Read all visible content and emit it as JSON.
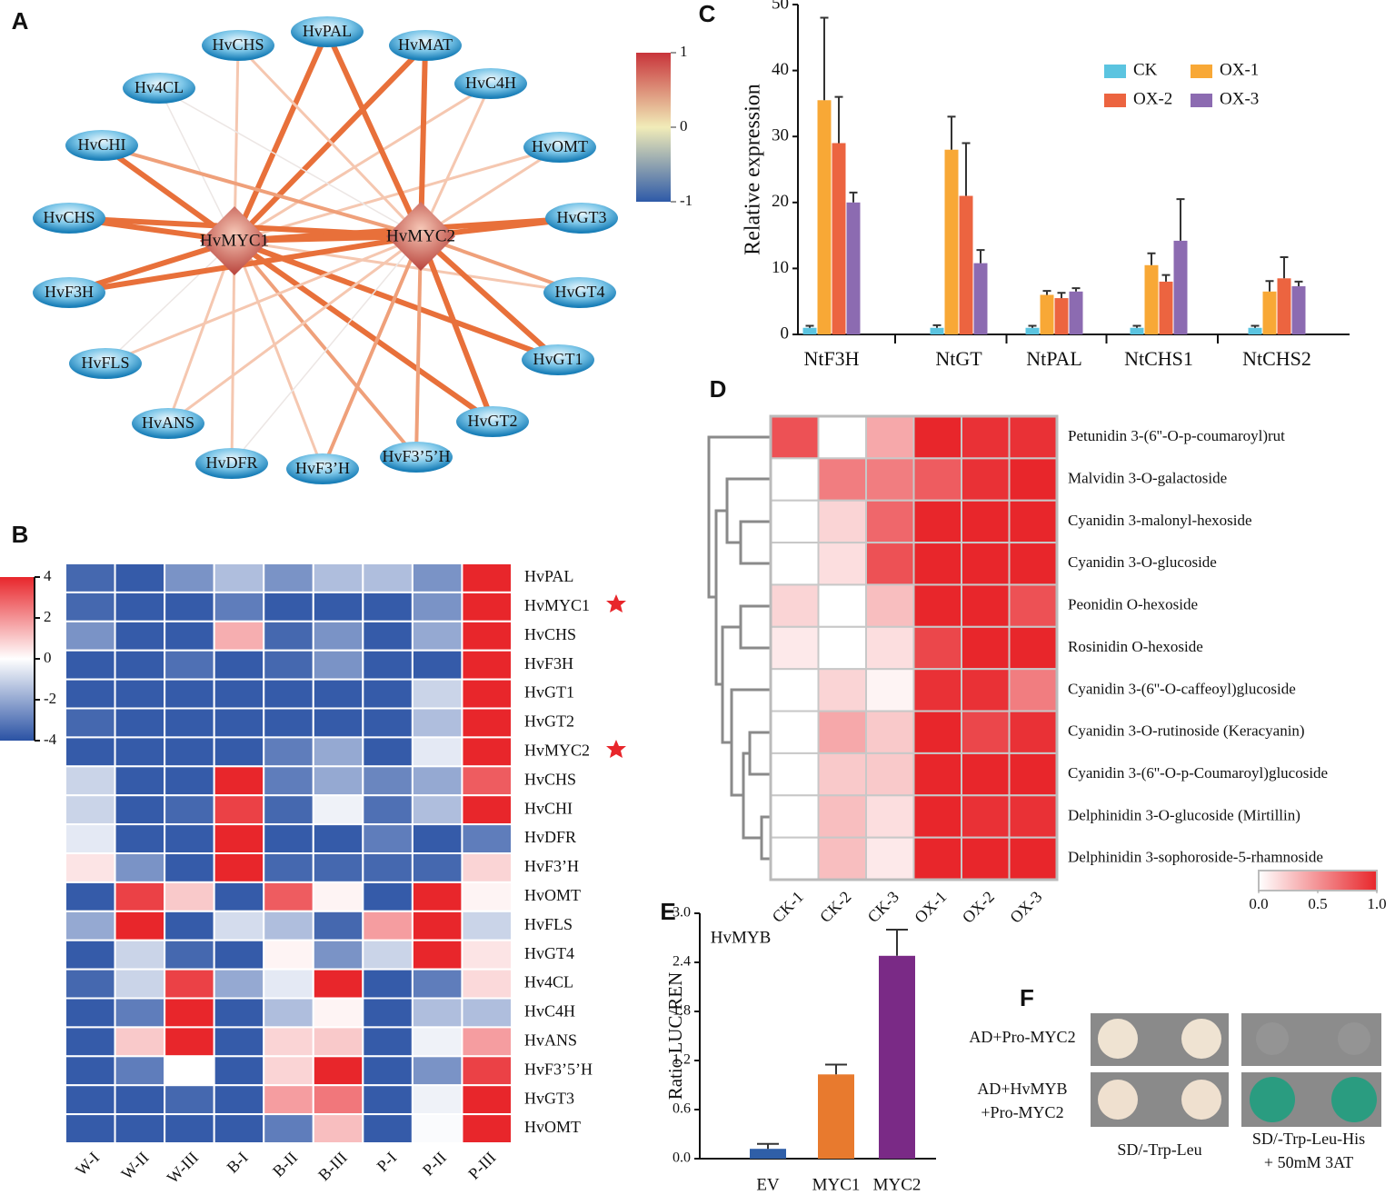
{
  "panel_labels": [
    "A",
    "B",
    "C",
    "D",
    "E",
    "F"
  ],
  "network": {
    "hubs": [
      "HvMYC1",
      "HvMYC2"
    ],
    "nodes": [
      "HvCHS",
      "HvPAL",
      "HvMAT",
      "HvC4H",
      "Hv4CL",
      "HvOMT",
      "HvCHI",
      "HvCHS",
      "HvGT3",
      "HvF3H",
      "HvGT4",
      "HvFLS",
      "HvGT1",
      "HvANS",
      "HvGT2",
      "HvDFR",
      "HvF3’H",
      "HvF3’5’H"
    ],
    "colorbar_ticks": [
      1,
      0,
      -1
    ]
  },
  "chart_data": [
    {
      "type": "heatmap",
      "rows": [
        "HvPAL",
        "HvMYC1",
        "HvCHS",
        "HvF3H",
        "HvGT1",
        "HvGT2",
        "HvMYC2",
        "HvCHS",
        "HvCHI",
        "HvDFR",
        "HvF3’H",
        "HvOMT",
        "HvFLS",
        "HvGT4",
        "Hv4CL",
        "HvC4H",
        "HvANS",
        "HvF3’5’H",
        "HvGT3",
        "HvOMT"
      ],
      "columns": [
        "W-I",
        "W-II",
        "W-III",
        "B-I",
        "B-II",
        "B-III",
        "P-I",
        "P-II",
        "P-III"
      ],
      "values": [
        [
          -3.5,
          -3.8,
          -2.5,
          -1.5,
          -2.5,
          -1.5,
          -1.5,
          -2.5,
          4
        ],
        [
          -3.5,
          -3.8,
          -3.8,
          -3,
          -3.8,
          -3.8,
          -3.8,
          -2.5,
          4
        ],
        [
          -2.5,
          -3.8,
          -3.8,
          1.5,
          -3.5,
          -2.5,
          -3.8,
          -2,
          4
        ],
        [
          -3.8,
          -3.8,
          -3.3,
          -3.8,
          -3.5,
          -2.5,
          -3.8,
          -3.8,
          4
        ],
        [
          -3.8,
          -3.8,
          -3.8,
          -3.8,
          -3.8,
          -3.8,
          -3.8,
          -1,
          4
        ],
        [
          -3.5,
          -3.8,
          -3.8,
          -3.8,
          -3.8,
          -3.8,
          -3.8,
          -1.5,
          4
        ],
        [
          -3.8,
          -3.8,
          -3.8,
          -3.8,
          -3,
          -2,
          -3.8,
          -0.5,
          4
        ],
        [
          -1,
          -3.8,
          -3.8,
          4,
          -3,
          -2,
          -2.8,
          -2,
          3
        ],
        [
          -1,
          -3.8,
          -3.5,
          3.5,
          -3.5,
          -0.3,
          -3.3,
          -1.5,
          4
        ],
        [
          -0.5,
          -3.8,
          -3.8,
          4,
          -3.8,
          -3.8,
          -3,
          -3.8,
          -3
        ],
        [
          0.5,
          -2.5,
          -3.8,
          4,
          -3.5,
          -3.5,
          -3.5,
          -3.5,
          0.8
        ],
        [
          -3.8,
          3.5,
          1,
          -3.8,
          3,
          0.2,
          -3.8,
          4,
          0.2
        ],
        [
          -2,
          4,
          -3.8,
          -0.8,
          -1.5,
          -3.5,
          1.8,
          4,
          -1
        ],
        [
          -3.8,
          -1,
          -3.5,
          -3.8,
          0.2,
          -2.5,
          -1,
          4,
          0.5
        ],
        [
          -3.5,
          -1,
          3.5,
          -2,
          -0.5,
          4,
          -3.8,
          -3,
          0.7
        ],
        [
          -3.8,
          -3,
          4,
          -3.8,
          -1.5,
          0.2,
          -3.8,
          -1.5,
          -1.5
        ],
        [
          -3.8,
          1,
          4,
          -3.8,
          0.8,
          1,
          -3.8,
          -0.3,
          1.8
        ],
        [
          -3.8,
          -3,
          0,
          -3.8,
          0.8,
          4,
          -3.8,
          -2.5,
          3.5
        ],
        [
          -3.8,
          -3.8,
          -3.5,
          -3.8,
          1.8,
          2.5,
          -3.8,
          -0.3,
          4
        ],
        [
          -3.8,
          -3.8,
          -3.8,
          -3.8,
          -3,
          1.2,
          -3.8,
          -0.1,
          4
        ]
      ],
      "vlim": [
        -4,
        4
      ],
      "colors": [
        "#2a52a4",
        "#ffffff",
        "#e8262b"
      ],
      "colorbar_ticks": [
        4,
        2,
        0,
        -2,
        -4
      ]
    },
    {
      "type": "bar",
      "ylabel": "Relative expression",
      "categories": [
        "NtF3H",
        "NtGT",
        "NtPAL",
        "NtCHS1",
        "NtCHS2"
      ],
      "series": [
        {
          "name": "CK",
          "color": "#5bc4e0",
          "values": [
            1,
            1,
            1,
            1,
            1
          ],
          "errors": [
            0.3,
            0.4,
            0.3,
            0.3,
            0.3
          ]
        },
        {
          "name": "OX-1",
          "color": "#f8a836",
          "values": [
            35.5,
            28,
            6,
            10.5,
            6.5
          ],
          "errors": [
            12.5,
            5,
            0.6,
            1.8,
            1.6
          ]
        },
        {
          "name": "OX-2",
          "color": "#ec6440",
          "values": [
            29,
            21,
            5.5,
            8,
            8.5
          ],
          "errors": [
            7,
            8,
            0.8,
            1,
            3.2
          ]
        },
        {
          "name": "OX-3",
          "color": "#8c6bb1",
          "values": [
            20,
            10.8,
            6.5,
            14.2,
            7.3
          ],
          "errors": [
            1.5,
            2,
            0.5,
            6.3,
            0.7
          ]
        }
      ],
      "ylim": [
        0,
        50
      ],
      "yticks": [
        0,
        10,
        20,
        30,
        40,
        50
      ]
    },
    {
      "type": "heatmap",
      "rows": [
        "Petunidin 3-(6''-O-p-coumaroyl)rut",
        "Malvidin 3-O-galactoside",
        "Cyanidin 3-malonyl-hexoside",
        "Cyanidin 3-O-glucoside",
        "Peonidin O-hexoside",
        "Rosinidin O-hexoside",
        "Cyanidin 3-(6''-O-caffeoyl)glucoside",
        "Cyanidin 3-O-rutinoside (Keracyanin)",
        "Cyanidin 3-(6''-O-p-Coumaroyl)glucoside",
        "Delphinidin 3-O-glucoside (Mirtillin)",
        "Delphinidin 3-sophoroside-5-rhamnoside"
      ],
      "columns": [
        "CK-1",
        "CK-2",
        "CK-3",
        "OX-1",
        "OX-2",
        "OX-3"
      ],
      "values": [
        [
          0.8,
          0,
          0.4,
          1,
          0.95,
          0.95
        ],
        [
          0,
          0.6,
          0.6,
          0.75,
          0.95,
          1
        ],
        [
          0,
          0.2,
          0.7,
          1,
          1,
          1
        ],
        [
          0,
          0.15,
          0.8,
          1,
          1,
          1
        ],
        [
          0.2,
          0,
          0.3,
          1,
          1,
          0.8
        ],
        [
          0.1,
          0,
          0.15,
          0.85,
          1,
          1
        ],
        [
          0,
          0.2,
          0.05,
          0.95,
          0.95,
          0.6
        ],
        [
          0,
          0.4,
          0.25,
          1,
          0.85,
          0.95
        ],
        [
          0,
          0.25,
          0.25,
          1,
          1,
          1
        ],
        [
          0,
          0.3,
          0.15,
          1,
          0.95,
          0.95
        ],
        [
          0,
          0.3,
          0.1,
          1,
          1,
          1
        ]
      ],
      "vlim": [
        0,
        1
      ],
      "colors": [
        "#ffffff",
        "#e8262b"
      ],
      "colorbar_ticks": [
        {
          "value": 0,
          "label": "0.0"
        },
        0.5,
        {
          "value": 1,
          "label": "1.0"
        }
      ]
    },
    {
      "type": "bar",
      "ylabel": "Ratio LUC/REN",
      "annotation": "HvMYB",
      "categories": [
        "EV",
        "MYC1",
        "MYC2"
      ],
      "values": [
        0.12,
        1.03,
        2.48
      ],
      "errors": [
        0.06,
        0.12,
        0.32
      ],
      "colors": [
        "#2f5fa8",
        "#e87a2e",
        "#7a2a86"
      ],
      "ylim": [
        0,
        3
      ],
      "yticks": [
        {
          "value": 0,
          "label": "0.0"
        },
        0.6,
        1.2,
        1.8,
        2.4,
        {
          "value": 3,
          "label": "3.0"
        }
      ]
    }
  ],
  "panel_f": {
    "rows": [
      "AD+Pro-MYC2",
      "AD+HvMYB",
      "+Pro-MYC2"
    ],
    "columns": [
      "SD/-Trp-Leu",
      "SD/-Trp-Leu-His",
      "+ 50mM 3AT"
    ]
  }
}
